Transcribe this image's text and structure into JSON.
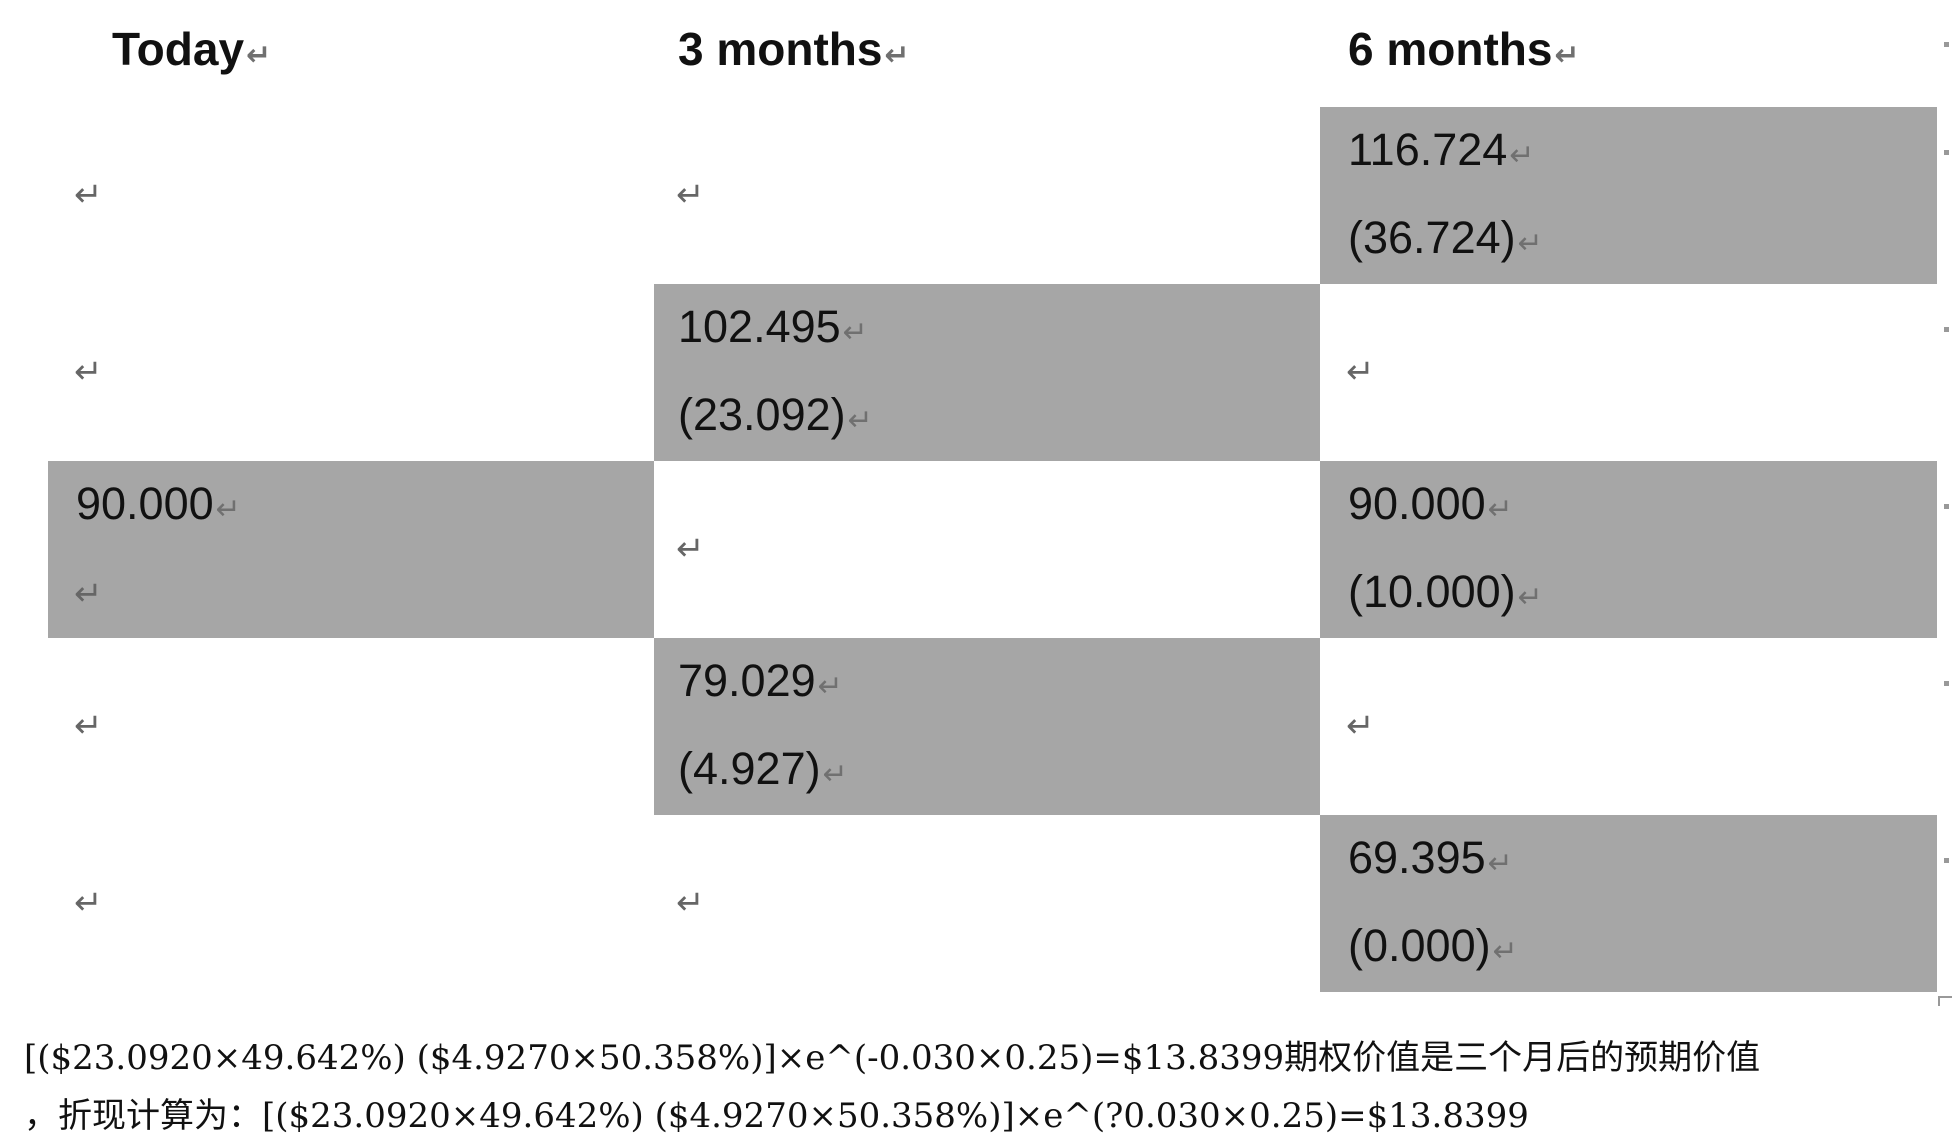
{
  "headers": [
    "Today",
    "3 months",
    "6 months"
  ],
  "return_mark": "↵",
  "nodes": {
    "today": {
      "price": "90.000"
    },
    "m3_up": {
      "price": "102.495",
      "value": "(23.092)"
    },
    "m3_down": {
      "price": "79.029",
      "value": "(4.927)"
    },
    "m6_uu": {
      "price": "116.724",
      "value": "(36.724)"
    },
    "m6_ud": {
      "price": "90.000",
      "value": "(10.000)"
    },
    "m6_dd": {
      "price": "69.395",
      "value": "(0.000)"
    }
  },
  "formula": {
    "line1": "[($23.0920×49.642%) ($4.9270×50.358%)]×e^(-0.030×0.25)=$13.8399期权价值是三个月后的预期价值",
    "line2": "，折现计算为：[($23.0920×49.642%) ($4.9270×50.358%)]×e^(?0.030×0.25)=$13.8399"
  }
}
